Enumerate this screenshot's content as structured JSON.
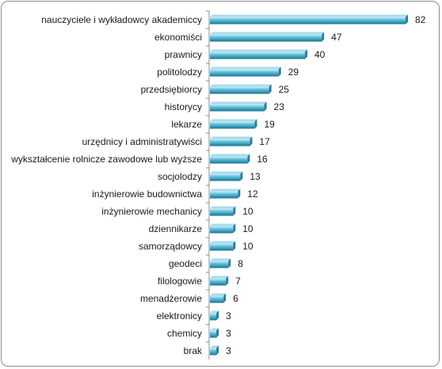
{
  "chart_data": {
    "type": "bar",
    "orientation": "horizontal",
    "categories": [
      "nauczyciele i wykładowcy akademiccy",
      "ekonomiści",
      "prawnicy",
      "politolodzy",
      "przedsiębiorcy",
      "historycy",
      "lekarze",
      "urzędnicy i administratywiści",
      "wykształcenie rolnicze zawodowe lub wyższe",
      "socjolodzy",
      "inżynierowie budownictwa",
      "inżynierowie mechanicy",
      "dziennikarze",
      "samorządowcy",
      "geodeci",
      "filologowie",
      "menadżerowie",
      "elektronicy",
      "chemicy",
      "brak"
    ],
    "values": [
      82,
      47,
      40,
      29,
      25,
      23,
      19,
      17,
      16,
      13,
      12,
      10,
      10,
      10,
      8,
      7,
      6,
      3,
      3,
      3
    ],
    "title": "",
    "xlabel": "",
    "ylabel": "",
    "xlim": [
      0,
      82
    ],
    "grid": false,
    "legend": "none",
    "data_labels": true,
    "colors": {
      "bar_fill": "#4bacc6",
      "bar_light": "#a6dcec",
      "bar_dark": "#1f7f99",
      "axis": "#8c8c8c",
      "text": "#1a1a1a"
    }
  }
}
